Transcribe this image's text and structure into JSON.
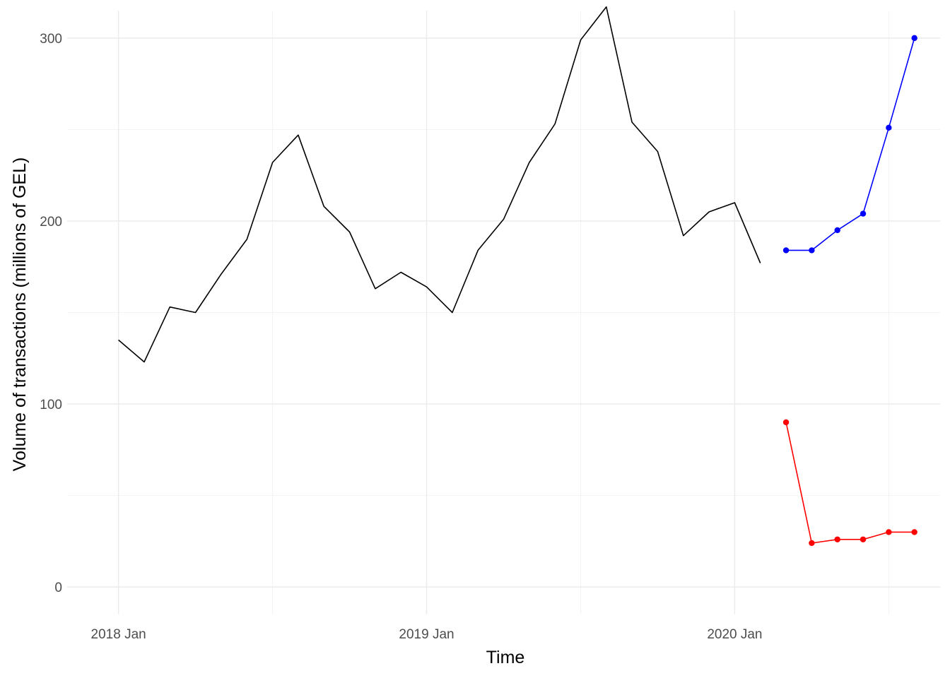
{
  "chart_data": {
    "type": "line",
    "title": "",
    "xlabel": "Time",
    "ylabel": "Volume of transactions (millions of GEL)",
    "grid": true,
    "legend": "none",
    "x_tick_labels": [
      "2018 Jan",
      "2019 Jan",
      "2020 Jan"
    ],
    "y_tick_labels": [
      "0",
      "100",
      "200",
      "300"
    ],
    "y_ticks": [
      0,
      100,
      200,
      300
    ],
    "ylim": [
      -15,
      315
    ],
    "xlim": [
      "2017-11",
      "2020-09"
    ],
    "series": [
      {
        "color": "#000000",
        "markers": false,
        "x": [
          "2018-01",
          "2018-02",
          "2018-03",
          "2018-04",
          "2018-05",
          "2018-06",
          "2018-07",
          "2018-08",
          "2018-09",
          "2018-10",
          "2018-11",
          "2018-12",
          "2019-01",
          "2019-02",
          "2019-03",
          "2019-04",
          "2019-05",
          "2019-06",
          "2019-07",
          "2019-08",
          "2019-09",
          "2019-10",
          "2019-11",
          "2019-12",
          "2020-01",
          "2020-02"
        ],
        "values": [
          135,
          123,
          153,
          150,
          171,
          190,
          232,
          247,
          208,
          194,
          163,
          172,
          164,
          150,
          184,
          201,
          232,
          253,
          299,
          317,
          254,
          238,
          192,
          205,
          210,
          177
        ]
      },
      {
        "color": "#0000ff",
        "markers": true,
        "x": [
          "2020-03",
          "2020-04",
          "2020-05",
          "2020-06",
          "2020-07",
          "2020-08"
        ],
        "values": [
          184,
          184,
          195,
          204,
          251,
          300
        ]
      },
      {
        "color": "#ff0000",
        "markers": true,
        "x": [
          "2020-03",
          "2020-04",
          "2020-05",
          "2020-06",
          "2020-07",
          "2020-08"
        ],
        "values": [
          90,
          24,
          26,
          26,
          30,
          30
        ]
      }
    ]
  }
}
